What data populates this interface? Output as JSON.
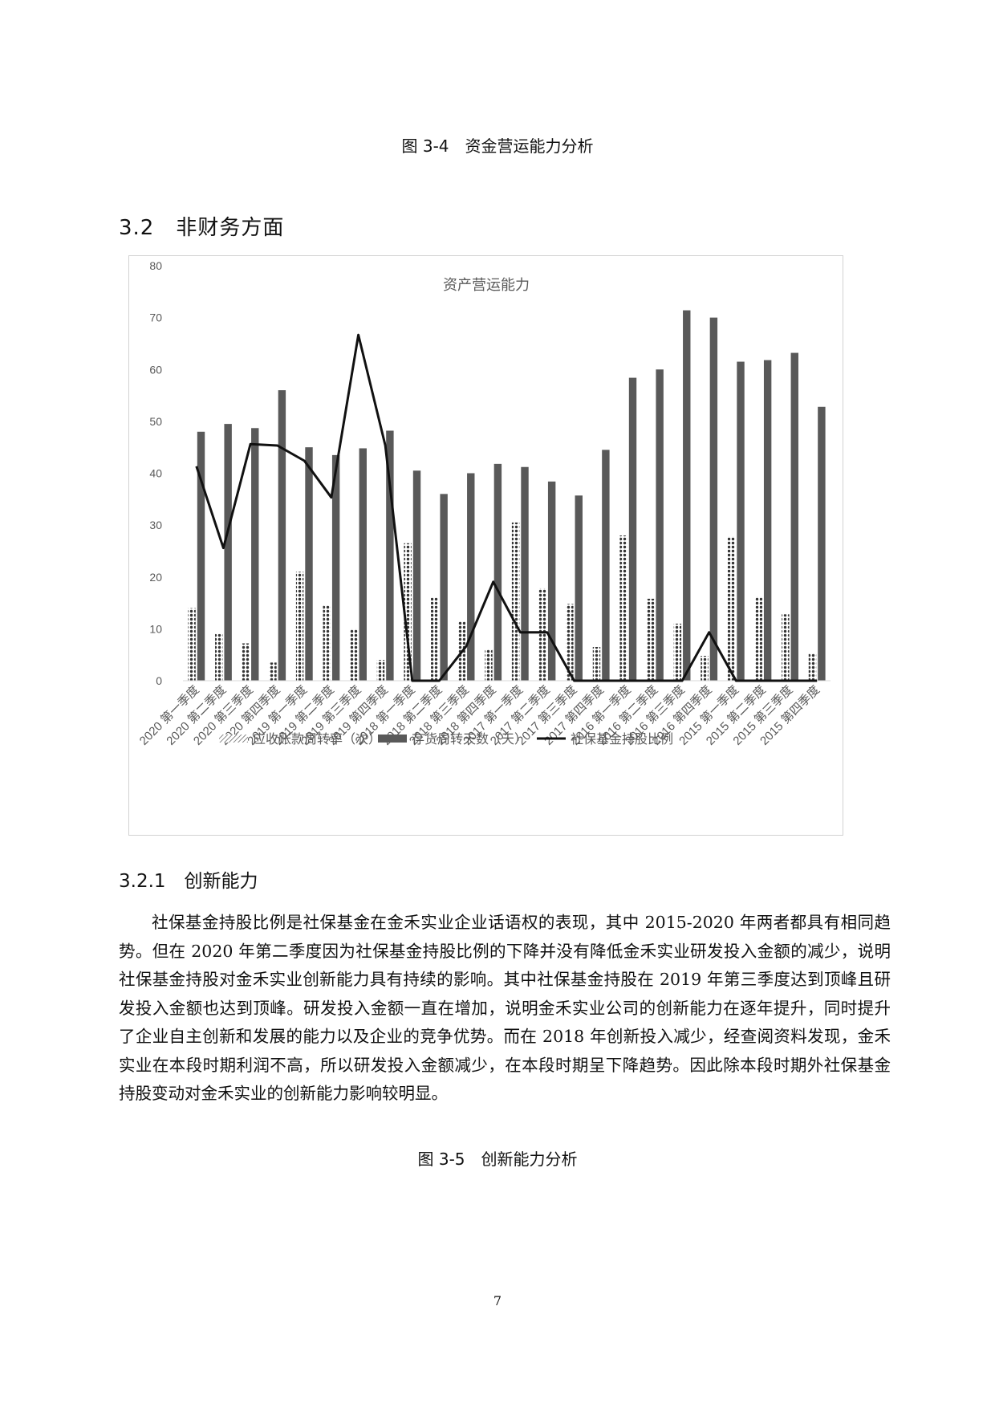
{
  "figure_top_caption": "图 3-4　资金营运能力分析",
  "section_heading": "3.2　非财务方面",
  "subsection_heading": "3.2.1　创新能力",
  "paragraph": "社保基金持股比例是社保基金在金禾实业企业话语权的表现，其中 2015-2020 年两者都具有相同趋势。但在 2020 年第二季度因为社保基金持股比例的下降并没有降低金禾实业研发投入金额的减少，说明社保基金持股对金禾实业创新能力具有持续的影响。其中社保基金持股在 2019 年第三季度达到顶峰且研发投入金额也达到顶峰。研发投入金额一直在增加，说明金禾实业公司的创新能力在逐年提升，同时提升了企业自主创新和发展的能力以及企业的竞争优势。而在 2018 年创新投入减少，经查阅资料发现，金禾实业在本段时期利润不高，所以研发投入金额减少，在本段时期呈下降趋势。因此除本段时期外社保基金持股变动对金禾实业的创新能力影响较明显。",
  "figure_bottom_caption": "图 3-5　创新能力分析",
  "page_number": "7",
  "chart_data": {
    "type": "bar",
    "title": "资产营运能力",
    "categories": [
      "2020 第一季度",
      "2020 第二季度",
      "2020 第三季度",
      "2020 第四季度",
      "2019 第一季度",
      "2019 第二季度",
      "2019 第三季度",
      "2019 第四季度",
      "2018 第一季度",
      "2018 第二季度",
      "2018 第三季度",
      "2018 第四季度",
      "2017 第一季度",
      "2017 第二季度",
      "2017 第三季度",
      "2017 第四季度",
      "2016 第一季度",
      "2016 第二季度",
      "2016 第三季度",
      "2016 第四季度",
      "2015 第一季度",
      "2015 第二季度",
      "2015 第三季度",
      "2015 第四季度"
    ],
    "series": [
      {
        "name": "应收账款周转率（次）",
        "axis": "left",
        "style": "dotted-bar",
        "values": [
          14,
          9,
          7.2,
          3.5,
          21,
          14.5,
          10,
          4,
          26.5,
          16,
          11.5,
          6,
          30.5,
          17.8,
          14.8,
          6.5,
          28,
          15.8,
          11,
          4.8,
          27.8,
          16.2,
          12.8,
          5.2
        ]
      },
      {
        "name": "存货周转天数（天）",
        "axis": "left",
        "style": "solid-bar",
        "values": [
          48,
          49.5,
          48.7,
          56,
          45,
          43.5,
          44.8,
          48.2,
          40.5,
          36,
          40,
          41.8,
          41.2,
          38.4,
          35.7,
          44.5,
          58.4,
          60,
          71.4,
          70,
          61.5,
          61.8,
          63.2,
          52.8
        ]
      },
      {
        "name": "社保基金持股比例",
        "axis": "right",
        "style": "line",
        "values": [
          31,
          19.2,
          34.2,
          34,
          31.8,
          26.5,
          50,
          34,
          0,
          0,
          5,
          14.3,
          7,
          7,
          0,
          0,
          0,
          0,
          0,
          7,
          0,
          0,
          0,
          0
        ]
      }
    ],
    "y_left": {
      "min": 0,
      "max": 80,
      "ticks": [
        "0",
        "10",
        "20",
        "30",
        "40",
        "50",
        "60",
        "70",
        "80"
      ]
    },
    "y_right": {
      "min": 0,
      "max": 60,
      "ticks": [
        "0",
        "10",
        "20",
        "30",
        "40",
        "50",
        "60"
      ]
    },
    "grid": false,
    "legend_position": "bottom",
    "colors": {
      "solid_bar": "#595959",
      "dotted_bar": "#333333",
      "line": "#111111",
      "axis_text": "#595959",
      "frame": "#d2d2d2"
    }
  }
}
